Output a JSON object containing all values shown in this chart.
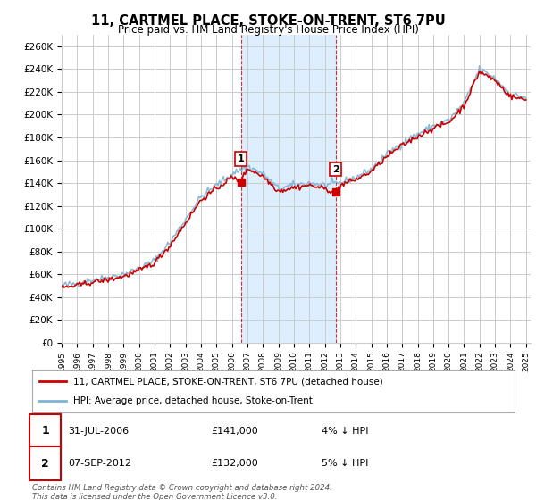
{
  "title": "11, CARTMEL PLACE, STOKE-ON-TRENT, ST6 7PU",
  "subtitle": "Price paid vs. HM Land Registry's House Price Index (HPI)",
  "ylabel_ticks": [
    "£0",
    "£20K",
    "£40K",
    "£60K",
    "£80K",
    "£100K",
    "£120K",
    "£140K",
    "£160K",
    "£180K",
    "£200K",
    "£220K",
    "£240K",
    "£260K"
  ],
  "ytick_values": [
    0,
    20000,
    40000,
    60000,
    80000,
    100000,
    120000,
    140000,
    160000,
    180000,
    200000,
    220000,
    240000,
    260000
  ],
  "ylim": [
    0,
    270000
  ],
  "xtick_years": [
    1995,
    1996,
    1997,
    1998,
    1999,
    2000,
    2001,
    2002,
    2003,
    2004,
    2005,
    2006,
    2007,
    2008,
    2009,
    2010,
    2011,
    2012,
    2013,
    2014,
    2015,
    2016,
    2017,
    2018,
    2019,
    2020,
    2021,
    2022,
    2023,
    2024,
    2025
  ],
  "sale1_x": 2006.58,
  "sale1_y": 141000,
  "sale2_x": 2012.69,
  "sale2_y": 132000,
  "legend_line1": "11, CARTMEL PLACE, STOKE-ON-TRENT, ST6 7PU (detached house)",
  "legend_line2": "HPI: Average price, detached house, Stoke-on-Trent",
  "ann1_date": "31-JUL-2006",
  "ann1_price": "£141,000",
  "ann1_hpi": "4% ↓ HPI",
  "ann2_date": "07-SEP-2012",
  "ann2_price": "£132,000",
  "ann2_hpi": "5% ↓ HPI",
  "footer": "Contains HM Land Registry data © Crown copyright and database right 2024.\nThis data is licensed under the Open Government Licence v3.0.",
  "price_color": "#cc0000",
  "hpi_color": "#7fb3d3",
  "highlight_color": "#ddeeff",
  "grid_color": "#cccccc",
  "bg_color": "#ffffff"
}
